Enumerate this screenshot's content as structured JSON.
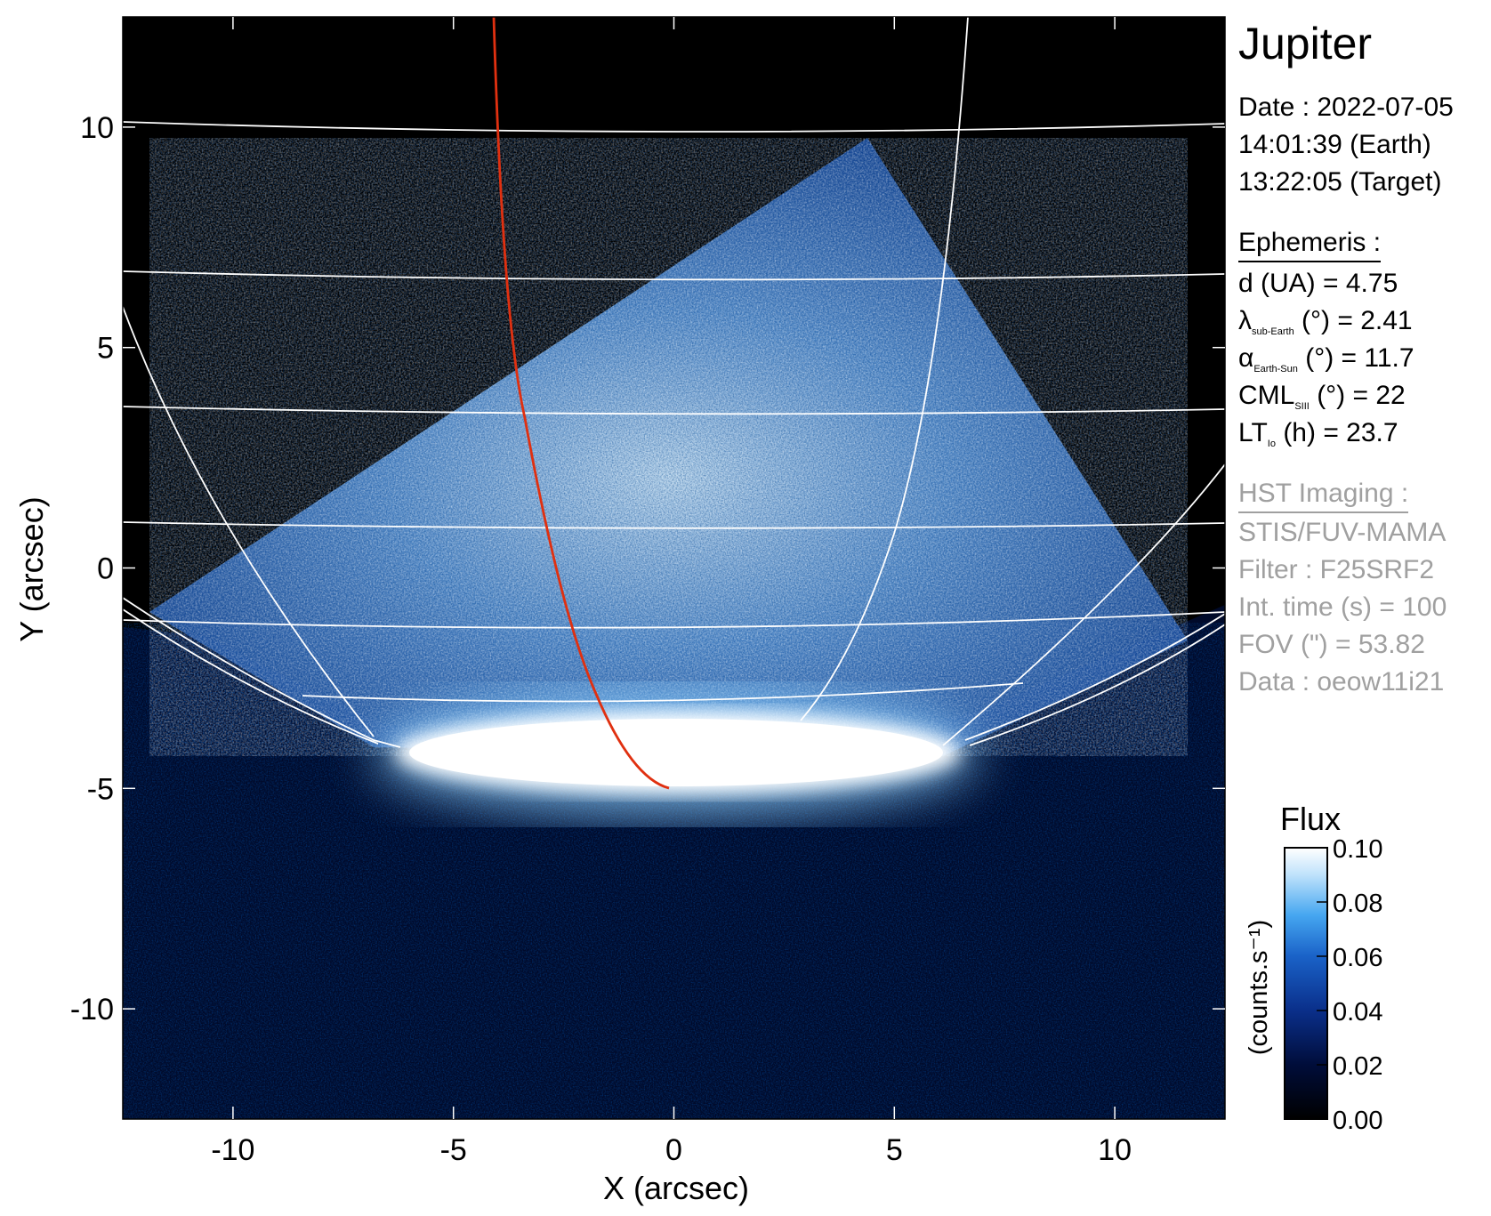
{
  "chart_data": {
    "type": "heatmap",
    "title": "Jupiter",
    "xlabel": "X (arcsec)",
    "ylabel": "Y (arcsec)",
    "xlim": [
      -12.5,
      12.5
    ],
    "ylim": [
      -12.5,
      12.5
    ],
    "x_ticks": [
      -10,
      -5,
      0,
      5,
      10
    ],
    "y_ticks": [
      -10,
      -5,
      0,
      5,
      10
    ],
    "colorbar": {
      "title": "Flux",
      "label": "(counts.s⁻¹)",
      "ticks": [
        "0.00",
        "0.02",
        "0.04",
        "0.06",
        "0.08",
        "0.10"
      ],
      "range": [
        0.0,
        0.1
      ]
    },
    "colors": {
      "background": "#000000",
      "grid": "#ffffff",
      "footprint": "#e03010",
      "colormap": [
        "#000000",
        "#000d3a",
        "#0a2f8a",
        "#1a62c8",
        "#45a6f0",
        "#bfe2fb",
        "#ffffff"
      ]
    }
  },
  "info": {
    "date": "Date : 2022-07-05",
    "time_earth": "14:01:39 (Earth)",
    "time_target": "13:22:05 (Target)",
    "ephemeris_header": "Ephemeris :",
    "distance": "d (UA)    = 4.75",
    "lat_symbol": "λ",
    "lat_sub": "sub-Earth",
    "lat_value": " (°) = 2.41",
    "phase_symbol": "α",
    "phase_sub": "Earth-Sun",
    "phase_value": " (°) = 11.7",
    "cml_symbol": "CML",
    "cml_sub": "SIII",
    "cml_value": " (°) = 22",
    "lt_symbol": "LT",
    "lt_sub": "Io",
    "lt_value": " (h) = 23.7",
    "hst_header": "HST Imaging :",
    "instrument": "STIS/FUV-MAMA",
    "filter": "Filter : F25SRF2",
    "int_time": "Int. time (s) = 100",
    "fov": "FOV (\") = 53.82",
    "data_id": "Data : oeow11i21"
  }
}
